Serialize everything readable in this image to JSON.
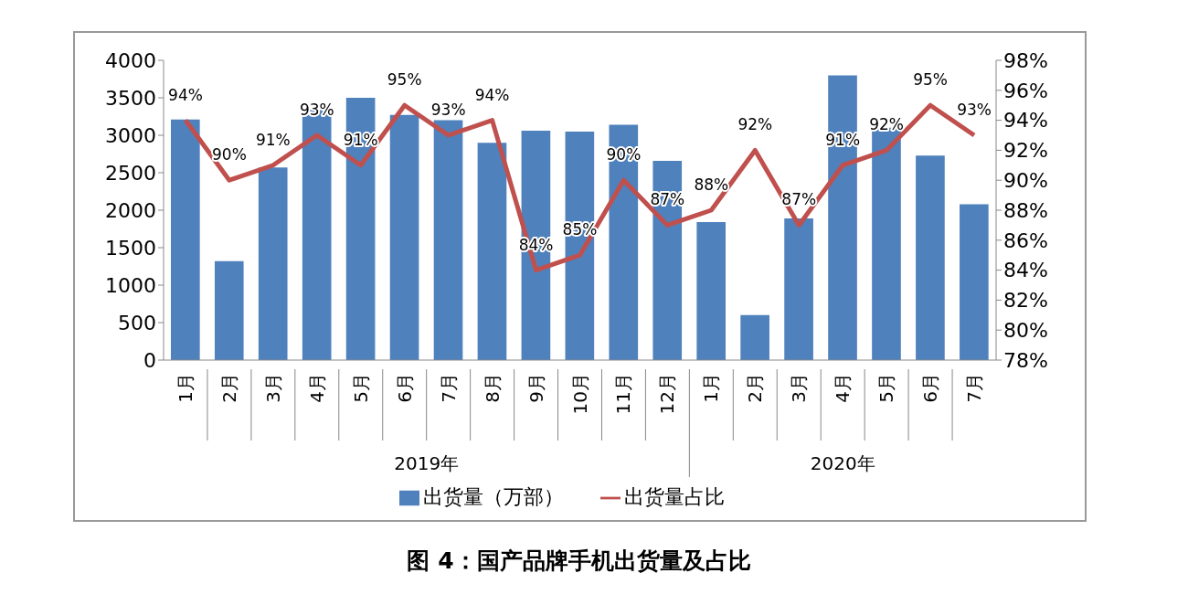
{
  "chart_data": {
    "type": "bar",
    "title": "图 4：国产品牌手机出货量及占比",
    "categories": [
      "1月",
      "2月",
      "3月",
      "4月",
      "5月",
      "6月",
      "7月",
      "8月",
      "9月",
      "10月",
      "11月",
      "12月",
      "1月",
      "2月",
      "3月",
      "4月",
      "5月",
      "6月",
      "7月"
    ],
    "annotations": [
      "2019年",
      "2020年"
    ],
    "series": [
      {
        "name": "出货量（万部）",
        "color": "#4f81bd",
        "values": [
          3210,
          1320,
          2570,
          3340,
          3500,
          3270,
          3200,
          2900,
          3060,
          3050,
          3140,
          2660,
          1840,
          600,
          1890,
          3800,
          3100,
          2730,
          2080
        ]
      },
      {
        "name": "出货量占比",
        "type": "line",
        "axis": "y2",
        "color": "#c0504d",
        "values": [
          94,
          90,
          91,
          93,
          91,
          95,
          93,
          94,
          84,
          85,
          90,
          87,
          88,
          92,
          87,
          91,
          92,
          95,
          93
        ],
        "value_labels": [
          "94%",
          "90%",
          "91%",
          "93%",
          "91%",
          "95%",
          "93%",
          "94%",
          "84%",
          "85%",
          "90%",
          "87%",
          "88%",
          "92%",
          "87%",
          "91%",
          "92%",
          "95%",
          "93%"
        ]
      }
    ],
    "ylim": [
      0,
      4000
    ],
    "yticks": [
      0,
      500,
      1000,
      1500,
      2000,
      2500,
      3000,
      3500,
      4000
    ],
    "y2lim": [
      78,
      98
    ],
    "y2ticks": [
      {
        "value": 78,
        "label": "78%"
      },
      {
        "value": 80,
        "label": "80%"
      },
      {
        "value": 82,
        "label": "82%"
      },
      {
        "value": 84,
        "label": "84%"
      },
      {
        "value": 86,
        "label": "86%"
      },
      {
        "value": 88,
        "label": "88%"
      },
      {
        "value": 90,
        "label": "90%"
      },
      {
        "value": 92,
        "label": "92%"
      },
      {
        "value": 94,
        "label": "94%"
      },
      {
        "value": 96,
        "label": "96%"
      },
      {
        "value": 98,
        "label": "98%"
      }
    ],
    "grid": false,
    "legend": "bottom",
    "marker": "none"
  }
}
